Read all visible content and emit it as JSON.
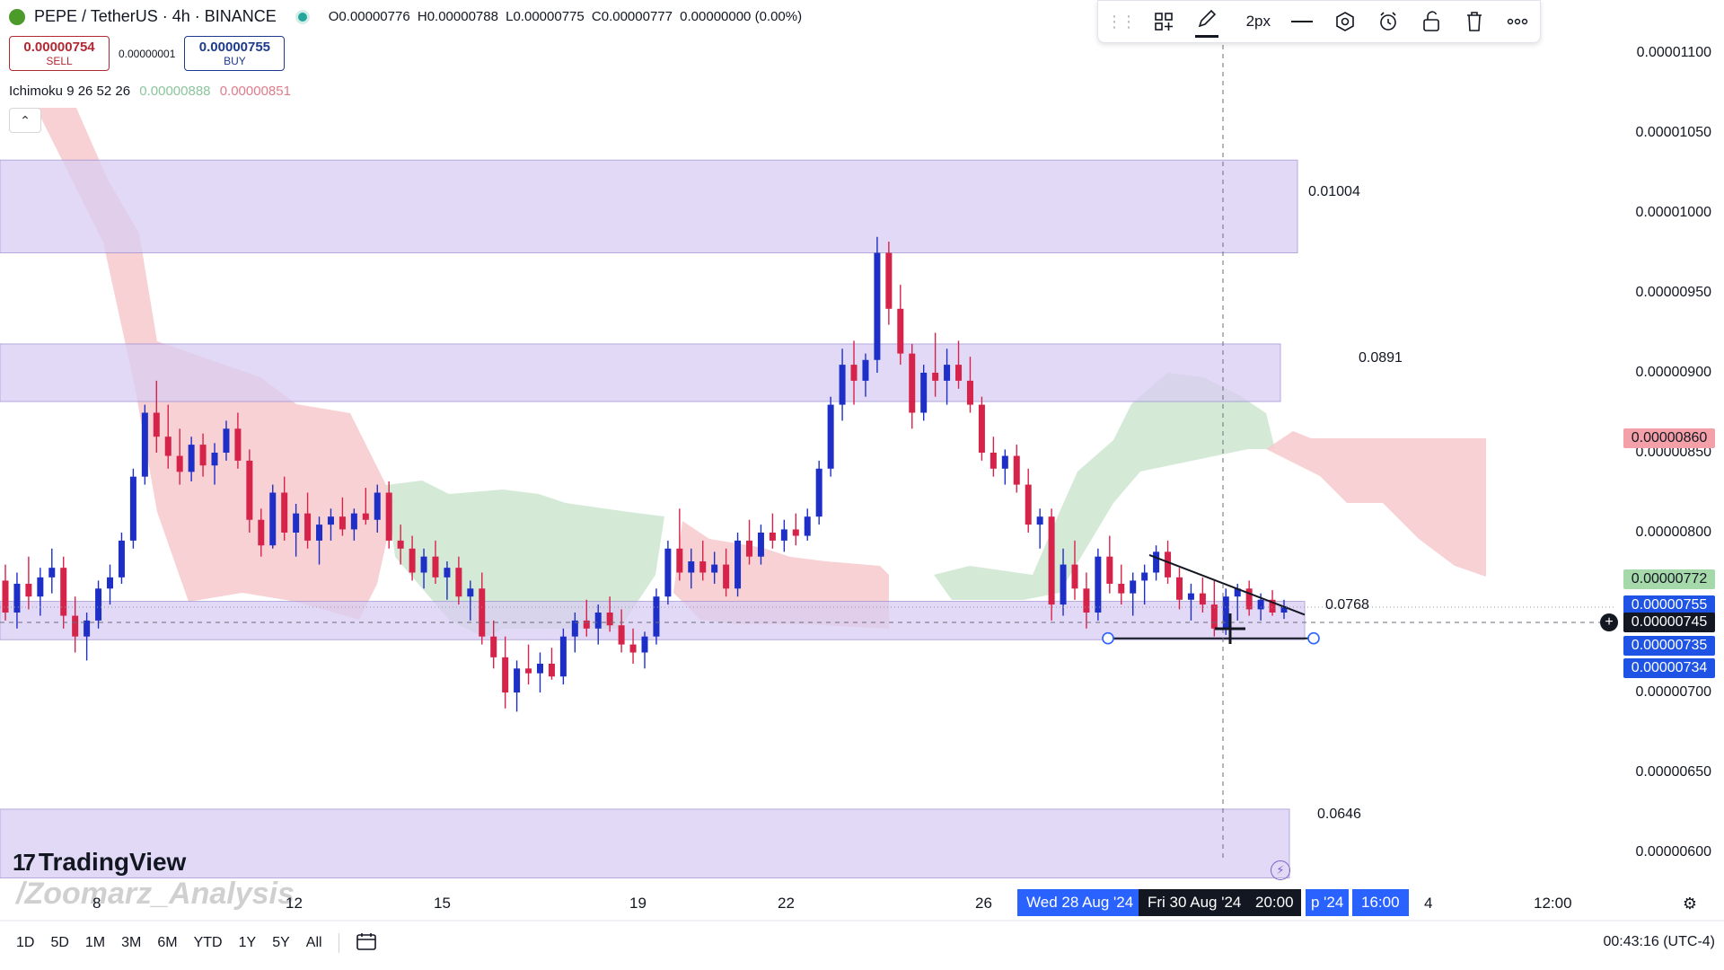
{
  "header": {
    "symbol_title": "PEPE / TetherUS · 4h · BINANCE",
    "open": "O0.00000776",
    "high": "H0.00000788",
    "low": "L0.00000775",
    "close": "C0.00000777",
    "change": "0.00000000 (0.00%)"
  },
  "trade": {
    "sell_price": "0.00000754",
    "sell_label": "SELL",
    "spread": "0.00000001",
    "buy_price": "0.00000755",
    "buy_label": "BUY"
  },
  "indicator": {
    "name": "Ichimoku 9 26 52 26",
    "value1": "0.00000888",
    "value2": "0.00000851"
  },
  "toolbar": {
    "grip_icon": "drag-handle-icon",
    "width_label": "2px"
  },
  "price_axis": {
    "labels": [
      "0.00001100",
      "0.00001050",
      "0.00001000",
      "0.00000950",
      "0.00000900",
      "0.00000850",
      "0.00000800",
      "0.00000700",
      "0.00000650",
      "0.00000600"
    ],
    "tags": [
      {
        "text": "0.00000860",
        "bg": "#f4a0a8",
        "fg": "#131722"
      },
      {
        "text": "0.00000772",
        "bg": "#a6d9a9",
        "fg": "#131722"
      },
      {
        "text": "0.00000755",
        "bg": "#1e53e5",
        "fg": "#ffffff"
      },
      {
        "text": "0.00000745",
        "bg": "#131722",
        "fg": "#ffffff"
      },
      {
        "text": "0.00000735",
        "bg": "#1e53e5",
        "fg": "#ffffff"
      },
      {
        "text": "0.00000734",
        "bg": "#1e53e5",
        "fg": "#ffffff"
      }
    ]
  },
  "levels": [
    "0.01004",
    "0.0891",
    "0.0768",
    "0.0646"
  ],
  "time_axis": {
    "labels": [
      "8",
      "12",
      "15",
      "19",
      "22",
      "26",
      "4",
      "12:00"
    ],
    "highlight_date1": "Wed 28 Aug '24",
    "highlight_date2": "Fri 30 Aug '24",
    "highlight_time": "20:00",
    "highlight_partial": "p '24",
    "highlight_time2": "16:00"
  },
  "timeframes": [
    "1D",
    "5D",
    "1M",
    "3M",
    "6M",
    "YTD",
    "1Y",
    "5Y",
    "All"
  ],
  "clock": "00:43:16 (UTC-4)",
  "brand": {
    "logo_text": "TradingView",
    "watermark": "/Zoomarz_Analysis"
  },
  "colors": {
    "up": "#1e2fc8",
    "down": "#d6234a",
    "zone": "#d9cdf3",
    "cloud_red": "#f7c9cd",
    "cloud_green": "#cfe8d3"
  },
  "chart_data": {
    "type": "candlestick",
    "symbol": "PEPE / TetherUS",
    "interval": "4h",
    "ylim": [
      5.8e-06,
      1.12e-05
    ],
    "resistance_zones": [
      {
        "low": 9.75e-06,
        "high": 1.033e-05,
        "label": "0.01004"
      },
      {
        "low": 8.82e-06,
        "high": 9.18e-06,
        "label": "0.0891"
      },
      {
        "low": 7.33e-06,
        "high": 7.57e-06,
        "label": "0.0768"
      },
      {
        "low": 5.84e-06,
        "high": 6.27e-06,
        "label": "0.0646"
      }
    ],
    "triangle": {
      "high_start": 7.86e-06,
      "high_end": 7.52e-06,
      "base": 7.35e-06
    },
    "candles": [
      [
        7.7e-06,
        7.8e-06,
        7.45e-06,
        7.5e-06
      ],
      [
        7.5e-06,
        7.75e-06,
        7.4e-06,
        7.68e-06
      ],
      [
        7.68e-06,
        7.85e-06,
        7.52e-06,
        7.6e-06
      ],
      [
        7.6e-06,
        7.78e-06,
        7.48e-06,
        7.72e-06
      ],
      [
        7.72e-06,
        7.9e-06,
        7.62e-06,
        7.78e-06
      ],
      [
        7.78e-06,
        7.85e-06,
        7.4e-06,
        7.48e-06
      ],
      [
        7.48e-06,
        7.6e-06,
        7.25e-06,
        7.35e-06
      ],
      [
        7.35e-06,
        7.5e-06,
        7.2e-06,
        7.45e-06
      ],
      [
        7.45e-06,
        7.7e-06,
        7.4e-06,
        7.65e-06
      ],
      [
        7.65e-06,
        7.8e-06,
        7.55e-06,
        7.72e-06
      ],
      [
        7.72e-06,
        8e-06,
        7.68e-06,
        7.95e-06
      ],
      [
        7.95e-06,
        8.4e-06,
        7.9e-06,
        8.35e-06
      ],
      [
        8.35e-06,
        8.8e-06,
        8.3e-06,
        8.75e-06
      ],
      [
        8.75e-06,
        8.95e-06,
        8.5e-06,
        8.6e-06
      ],
      [
        8.6e-06,
        8.8e-06,
        8.4e-06,
        8.48e-06
      ],
      [
        8.48e-06,
        8.65e-06,
        8.3e-06,
        8.38e-06
      ],
      [
        8.38e-06,
        8.6e-06,
        8.32e-06,
        8.55e-06
      ],
      [
        8.55e-06,
        8.62e-06,
        8.35e-06,
        8.42e-06
      ],
      [
        8.42e-06,
        8.56e-06,
        8.3e-06,
        8.5e-06
      ],
      [
        8.5e-06,
        8.7e-06,
        8.45e-06,
        8.65e-06
      ],
      [
        8.65e-06,
        8.75e-06,
        8.4e-06,
        8.45e-06
      ],
      [
        8.45e-06,
        8.52e-06,
        8e-06,
        8.08e-06
      ],
      [
        8.08e-06,
        8.15e-06,
        7.85e-06,
        7.92e-06
      ],
      [
        7.92e-06,
        8.3e-06,
        7.9e-06,
        8.25e-06
      ],
      [
        8.25e-06,
        8.35e-06,
        7.95e-06,
        8e-06
      ],
      [
        8e-06,
        8.18e-06,
        7.85e-06,
        8.12e-06
      ],
      [
        8.12e-06,
        8.25e-06,
        7.9e-06,
        7.95e-06
      ],
      [
        7.95e-06,
        8.1e-06,
        7.8e-06,
        8.05e-06
      ],
      [
        8.05e-06,
        8.15e-06,
        7.95e-06,
        8.1e-06
      ],
      [
        8.1e-06,
        8.22e-06,
        7.98e-06,
        8.02e-06
      ],
      [
        8.02e-06,
        8.15e-06,
        7.95e-06,
        8.12e-06
      ],
      [
        8.12e-06,
        8.28e-06,
        8.05e-06,
        8.08e-06
      ],
      [
        8.08e-06,
        8.3e-06,
        8e-06,
        8.25e-06
      ],
      [
        8.25e-06,
        8.32e-06,
        7.9e-06,
        7.95e-06
      ],
      [
        7.95e-06,
        8.05e-06,
        7.8e-06,
        7.9e-06
      ],
      [
        7.9e-06,
        7.98e-06,
        7.7e-06,
        7.75e-06
      ],
      [
        7.75e-06,
        7.9e-06,
        7.65e-06,
        7.85e-06
      ],
      [
        7.85e-06,
        7.95e-06,
        7.68e-06,
        7.72e-06
      ],
      [
        7.72e-06,
        7.82e-06,
        7.58e-06,
        7.78e-06
      ],
      [
        7.78e-06,
        7.85e-06,
        7.55e-06,
        7.6e-06
      ],
      [
        7.6e-06,
        7.7e-06,
        7.45e-06,
        7.65e-06
      ],
      [
        7.65e-06,
        7.75e-06,
        7.3e-06,
        7.35e-06
      ],
      [
        7.35e-06,
        7.45e-06,
        7.15e-06,
        7.22e-06
      ],
      [
        7.22e-06,
        7.35e-06,
        6.9e-06,
        7e-06
      ],
      [
        7e-06,
        7.2e-06,
        6.88e-06,
        7.15e-06
      ],
      [
        7.15e-06,
        7.3e-06,
        7.05e-06,
        7.12e-06
      ],
      [
        7.12e-06,
        7.25e-06,
        7e-06,
        7.18e-06
      ],
      [
        7.18e-06,
        7.28e-06,
        7.08e-06,
        7.1e-06
      ],
      [
        7.1e-06,
        7.4e-06,
        7.05e-06,
        7.35e-06
      ],
      [
        7.35e-06,
        7.5e-06,
        7.25e-06,
        7.45e-06
      ],
      [
        7.45e-06,
        7.58e-06,
        7.35e-06,
        7.4e-06
      ],
      [
        7.4e-06,
        7.55e-06,
        7.3e-06,
        7.5e-06
      ],
      [
        7.5e-06,
        7.6e-06,
        7.38e-06,
        7.42e-06
      ],
      [
        7.42e-06,
        7.52e-06,
        7.25e-06,
        7.3e-06
      ],
      [
        7.3e-06,
        7.4e-06,
        7.18e-06,
        7.25e-06
      ],
      [
        7.25e-06,
        7.38e-06,
        7.15e-06,
        7.35e-06
      ],
      [
        7.35e-06,
        7.65e-06,
        7.3e-06,
        7.6e-06
      ],
      [
        7.6e-06,
        7.95e-06,
        7.55e-06,
        7.9e-06
      ],
      [
        7.9e-06,
        8.15e-06,
        7.7e-06,
        7.75e-06
      ],
      [
        7.75e-06,
        7.9e-06,
        7.65e-06,
        7.82e-06
      ],
      [
        7.82e-06,
        7.95e-06,
        7.7e-06,
        7.75e-06
      ],
      [
        7.75e-06,
        7.88e-06,
        7.68e-06,
        7.8e-06
      ],
      [
        7.8e-06,
        7.9e-06,
        7.6e-06,
        7.65e-06
      ],
      [
        7.65e-06,
        8e-06,
        7.6e-06,
        7.95e-06
      ],
      [
        7.95e-06,
        8.08e-06,
        7.8e-06,
        7.85e-06
      ],
      [
        7.85e-06,
        8.05e-06,
        7.8e-06,
        8e-06
      ],
      [
        8e-06,
        8.12e-06,
        7.9e-06,
        7.95e-06
      ],
      [
        7.95e-06,
        8.08e-06,
        7.88e-06,
        8.02e-06
      ],
      [
        8.02e-06,
        8.12e-06,
        7.92e-06,
        7.98e-06
      ],
      [
        7.98e-06,
        8.15e-06,
        7.95e-06,
        8.1e-06
      ],
      [
        8.1e-06,
        8.45e-06,
        8.05e-06,
        8.4e-06
      ],
      [
        8.4e-06,
        8.85e-06,
        8.35e-06,
        8.8e-06
      ],
      [
        8.8e-06,
        9.15e-06,
        8.7e-06,
        9.05e-06
      ],
      [
        9.05e-06,
        9.2e-06,
        8.8e-06,
        8.95e-06
      ],
      [
        8.95e-06,
        9.12e-06,
        8.85e-06,
        9.08e-06
      ],
      [
        9.08e-06,
        9.85e-06,
        9e-06,
        9.75e-06
      ],
      [
        9.75e-06,
        9.82e-06,
        9.3e-06,
        9.4e-06
      ],
      [
        9.4e-06,
        9.55e-06,
        9.05e-06,
        9.12e-06
      ],
      [
        9.12e-06,
        9.18e-06,
        8.65e-06,
        8.75e-06
      ],
      [
        8.75e-06,
        9.05e-06,
        8.7e-06,
        9e-06
      ],
      [
        9e-06,
        9.25e-06,
        8.85e-06,
        8.95e-06
      ],
      [
        8.95e-06,
        9.15e-06,
        8.8e-06,
        9.05e-06
      ],
      [
        9.05e-06,
        9.2e-06,
        8.9e-06,
        8.95e-06
      ],
      [
        8.95e-06,
        9.1e-06,
        8.75e-06,
        8.8e-06
      ],
      [
        8.8e-06,
        8.85e-06,
        8.45e-06,
        8.5e-06
      ],
      [
        8.5e-06,
        8.6e-06,
        8.35e-06,
        8.4e-06
      ],
      [
        8.4e-06,
        8.52e-06,
        8.3e-06,
        8.48e-06
      ],
      [
        8.48e-06,
        8.55e-06,
        8.25e-06,
        8.3e-06
      ],
      [
        8.3e-06,
        8.4e-06,
        8e-06,
        8.05e-06
      ],
      [
        8.05e-06,
        8.15e-06,
        7.9e-06,
        8.1e-06
      ],
      [
        8.1e-06,
        8.15e-06,
        7.45e-06,
        7.55e-06
      ],
      [
        7.55e-06,
        7.9e-06,
        7.48e-06,
        7.8e-06
      ],
      [
        7.8e-06,
        7.95e-06,
        7.58e-06,
        7.65e-06
      ],
      [
        7.65e-06,
        7.75e-06,
        7.4e-06,
        7.5e-06
      ],
      [
        7.5e-06,
        7.9e-06,
        7.45e-06,
        7.85e-06
      ],
      [
        7.85e-06,
        7.98e-06,
        7.62e-06,
        7.68e-06
      ],
      [
        7.68e-06,
        7.8e-06,
        7.55e-06,
        7.62e-06
      ],
      [
        7.62e-06,
        7.75e-06,
        7.48e-06,
        7.7e-06
      ],
      [
        7.7e-06,
        7.8e-06,
        7.55e-06,
        7.75e-06
      ],
      [
        7.75e-06,
        7.92e-06,
        7.7e-06,
        7.88e-06
      ],
      [
        7.88e-06,
        7.95e-06,
        7.68e-06,
        7.72e-06
      ],
      [
        7.72e-06,
        7.78e-06,
        7.52e-06,
        7.58e-06
      ],
      [
        7.58e-06,
        7.68e-06,
        7.45e-06,
        7.62e-06
      ],
      [
        7.62e-06,
        7.72e-06,
        7.5e-06,
        7.55e-06
      ],
      [
        7.55e-06,
        7.7e-06,
        7.35e-06,
        7.4e-06
      ],
      [
        7.4e-06,
        7.65e-06,
        7.36e-06,
        7.6e-06
      ],
      [
        7.6e-06,
        7.68e-06,
        7.45e-06,
        7.65e-06
      ],
      [
        7.65e-06,
        7.7e-06,
        7.48e-06,
        7.52e-06
      ],
      [
        7.52e-06,
        7.62e-06,
        7.45e-06,
        7.58e-06
      ],
      [
        7.58e-06,
        7.64e-06,
        7.48e-06,
        7.5e-06
      ],
      [
        7.5e-06,
        7.58e-06,
        7.46e-06,
        7.54e-06
      ]
    ]
  }
}
